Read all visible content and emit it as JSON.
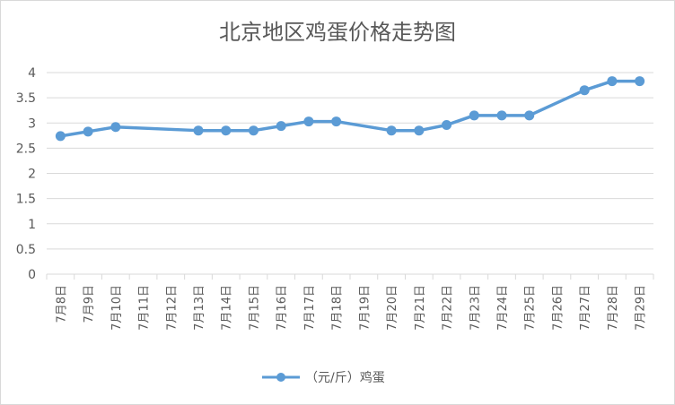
{
  "chart_data": {
    "type": "line",
    "title": "北京地区鸡蛋价格走势图",
    "categories": [
      "7月8日",
      "7月9日",
      "7月10日",
      "7月11日",
      "7月12日",
      "7月13日",
      "7月14日",
      "7月15日",
      "7月16日",
      "7月17日",
      "7月18日",
      "7月19日",
      "7月20日",
      "7月21日",
      "7月22日",
      "7月23日",
      "7月24日",
      "7月25日",
      "7月26日",
      "7月27日",
      "7月28日",
      "7月29日"
    ],
    "series": [
      {
        "name": "（元/斤）鸡蛋",
        "values": [
          2.74,
          2.83,
          2.92,
          null,
          null,
          2.85,
          2.85,
          2.85,
          2.94,
          3.03,
          3.03,
          null,
          2.85,
          2.85,
          2.96,
          3.15,
          3.15,
          3.15,
          null,
          3.65,
          3.83,
          3.83
        ]
      }
    ],
    "ylim": [
      0,
      4
    ],
    "yticks": [
      "0",
      "0.5",
      "1",
      "1.5",
      "2",
      "2.5",
      "3",
      "3.5",
      "4"
    ],
    "xlabel": "",
    "ylabel": "",
    "grid": true,
    "legend_position": "bottom",
    "line_color": "#5b9bd5",
    "gap_handling": "connect"
  }
}
